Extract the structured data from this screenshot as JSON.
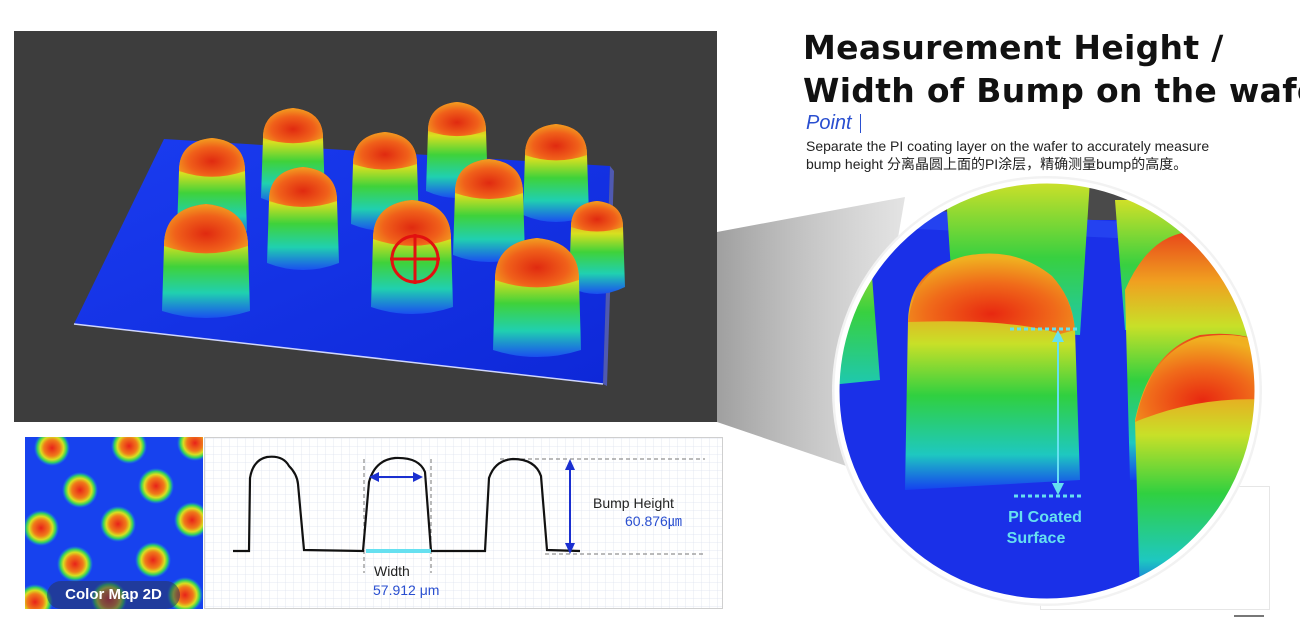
{
  "title": {
    "line1": "Measurement Height /",
    "line2": "Width of Bump on the wafer"
  },
  "point": {
    "label": "Point",
    "description_line1": "Separate the PI coating layer on the wafer to accurately measure",
    "description_line2": "bump height 分离晶圆上面的PI涂层，精确测量bump的高度。"
  },
  "zoom": {
    "surface_label_line1": "PI Coated",
    "surface_label_line2": "Surface"
  },
  "colormap": {
    "label": "Color Map 2D"
  },
  "profile": {
    "bump_height_label": "Bump Height",
    "bump_height_value": "60.876㎛",
    "width_label": "Width",
    "width_value": "57.912 μm"
  },
  "colors": {
    "accent_blue": "#1a2fd0",
    "highlight_cyan": "#66e0f0",
    "text_blue": "#2a4fd0"
  }
}
